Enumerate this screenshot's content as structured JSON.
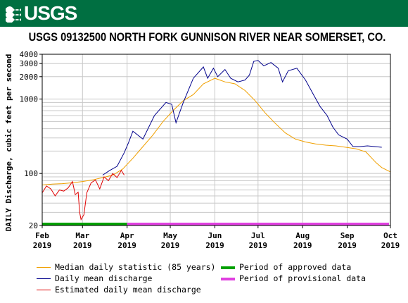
{
  "header": {
    "logo_text": "USGS"
  },
  "chart_data": {
    "type": "line",
    "title": "USGS 09132500 NORTH FORK GUNNISON RIVER NEAR SOMERSET, CO.",
    "ylabel": "DAILY Discharge, cubic feet per second",
    "xlabel": "",
    "y_scale": "log",
    "ylim": [
      20,
      4000
    ],
    "xlim": [
      "2019-02-01",
      "2019-10-01"
    ],
    "y_ticks": [
      20,
      100,
      1000,
      2000,
      3000,
      4000
    ],
    "y_tick_labels": [
      "20",
      "100",
      "1000",
      "2000",
      "3000",
      "4000"
    ],
    "x_ticks": [
      {
        "date": "2019-02-01",
        "month": "Feb",
        "year": "2019"
      },
      {
        "date": "2019-03-01",
        "month": "Mar",
        "year": "2019"
      },
      {
        "date": "2019-04-01",
        "month": "Apr",
        "year": "2019"
      },
      {
        "date": "2019-05-01",
        "month": "May",
        "year": "2019"
      },
      {
        "date": "2019-06-01",
        "month": "Jun",
        "year": "2019"
      },
      {
        "date": "2019-07-01",
        "month": "Jul",
        "year": "2019"
      },
      {
        "date": "2019-08-01",
        "month": "Aug",
        "year": "2019"
      },
      {
        "date": "2019-09-01",
        "month": "Sep",
        "year": "2019"
      },
      {
        "date": "2019-10-01",
        "month": "Oct",
        "year": "2019"
      }
    ],
    "grid": true,
    "legend_position": "bottom",
    "series": [
      {
        "name": "Median daily statistic (85 years)",
        "color": "#f0a000",
        "points": [
          [
            "2019-02-01",
            70
          ],
          [
            "2019-02-08",
            72
          ],
          [
            "2019-02-15",
            73
          ],
          [
            "2019-02-22",
            75
          ],
          [
            "2019-03-01",
            78
          ],
          [
            "2019-03-08",
            82
          ],
          [
            "2019-03-15",
            88
          ],
          [
            "2019-03-22",
            95
          ],
          [
            "2019-03-29",
            115
          ],
          [
            "2019-04-05",
            160
          ],
          [
            "2019-04-12",
            230
          ],
          [
            "2019-04-19",
            330
          ],
          [
            "2019-04-26",
            500
          ],
          [
            "2019-05-03",
            700
          ],
          [
            "2019-05-10",
            950
          ],
          [
            "2019-05-17",
            1150
          ],
          [
            "2019-05-24",
            1600
          ],
          [
            "2019-06-01",
            1900
          ],
          [
            "2019-06-08",
            1700
          ],
          [
            "2019-06-15",
            1600
          ],
          [
            "2019-06-22",
            1300
          ],
          [
            "2019-06-29",
            950
          ],
          [
            "2019-07-06",
            650
          ],
          [
            "2019-07-13",
            470
          ],
          [
            "2019-07-20",
            350
          ],
          [
            "2019-07-27",
            290
          ],
          [
            "2019-08-03",
            265
          ],
          [
            "2019-08-10",
            250
          ],
          [
            "2019-08-17",
            240
          ],
          [
            "2019-08-24",
            235
          ],
          [
            "2019-08-31",
            225
          ],
          [
            "2019-09-07",
            215
          ],
          [
            "2019-09-14",
            195
          ],
          [
            "2019-09-21",
            140
          ],
          [
            "2019-09-25",
            120
          ],
          [
            "2019-10-01",
            105
          ]
        ]
      },
      {
        "name": "Daily mean discharge",
        "color": "#00008b",
        "points": [
          [
            "2019-03-15",
            95
          ],
          [
            "2019-03-20",
            110
          ],
          [
            "2019-03-25",
            125
          ],
          [
            "2019-03-30",
            190
          ],
          [
            "2019-04-02",
            260
          ],
          [
            "2019-04-05",
            370
          ],
          [
            "2019-04-12",
            290
          ],
          [
            "2019-04-20",
            600
          ],
          [
            "2019-04-28",
            900
          ],
          [
            "2019-05-02",
            850
          ],
          [
            "2019-05-05",
            480
          ],
          [
            "2019-05-10",
            900
          ],
          [
            "2019-05-17",
            1900
          ],
          [
            "2019-05-24",
            2700
          ],
          [
            "2019-05-27",
            1900
          ],
          [
            "2019-05-31",
            2600
          ],
          [
            "2019-06-03",
            2000
          ],
          [
            "2019-06-08",
            2500
          ],
          [
            "2019-06-12",
            1900
          ],
          [
            "2019-06-17",
            1700
          ],
          [
            "2019-06-22",
            1800
          ],
          [
            "2019-06-25",
            2100
          ],
          [
            "2019-06-28",
            3200
          ],
          [
            "2019-07-01",
            3300
          ],
          [
            "2019-07-05",
            2800
          ],
          [
            "2019-07-10",
            3100
          ],
          [
            "2019-07-15",
            2600
          ],
          [
            "2019-07-18",
            1700
          ],
          [
            "2019-07-22",
            2400
          ],
          [
            "2019-07-28",
            2600
          ],
          [
            "2019-08-03",
            1800
          ],
          [
            "2019-08-08",
            1200
          ],
          [
            "2019-08-13",
            800
          ],
          [
            "2019-08-18",
            600
          ],
          [
            "2019-08-22",
            420
          ],
          [
            "2019-08-26",
            330
          ],
          [
            "2019-09-01",
            290
          ],
          [
            "2019-09-05",
            230
          ],
          [
            "2019-09-10",
            230
          ],
          [
            "2019-09-15",
            235
          ],
          [
            "2019-09-20",
            230
          ],
          [
            "2019-09-25",
            225
          ]
        ]
      },
      {
        "name": "Estimated daily mean discharge",
        "color": "#e00000",
        "points": [
          [
            "2019-02-01",
            55
          ],
          [
            "2019-02-04",
            68
          ],
          [
            "2019-02-07",
            62
          ],
          [
            "2019-02-10",
            50
          ],
          [
            "2019-02-13",
            60
          ],
          [
            "2019-02-16",
            58
          ],
          [
            "2019-02-19",
            64
          ],
          [
            "2019-02-22",
            78
          ],
          [
            "2019-02-24",
            52
          ],
          [
            "2019-02-26",
            56
          ],
          [
            "2019-02-27",
            30
          ],
          [
            "2019-02-28",
            24
          ],
          [
            "2019-03-02",
            28
          ],
          [
            "2019-03-04",
            55
          ],
          [
            "2019-03-07",
            75
          ],
          [
            "2019-03-10",
            82
          ],
          [
            "2019-03-13",
            62
          ],
          [
            "2019-03-16",
            90
          ],
          [
            "2019-03-19",
            80
          ],
          [
            "2019-03-22",
            100
          ],
          [
            "2019-03-25",
            88
          ],
          [
            "2019-03-28",
            110
          ],
          [
            "2019-03-30",
            95
          ]
        ]
      }
    ],
    "periods": [
      {
        "name": "Period of approved data",
        "color": "#00a000",
        "start": "2019-02-01",
        "end": "2019-04-01"
      },
      {
        "name": "Period of provisional data",
        "color": "#e040e0",
        "start": "2019-04-01",
        "end": "2019-09-30"
      }
    ]
  }
}
